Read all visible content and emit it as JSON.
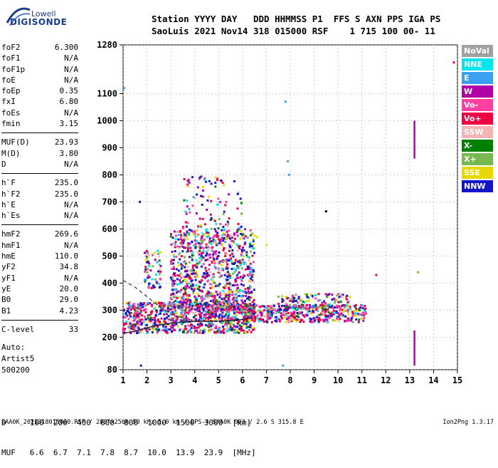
{
  "logo": {
    "line1": "Lowell",
    "line2": "DIGISONDE"
  },
  "header": {
    "line1": "Station YYYY DAY   DDD HHMMSS P1  FFS S AXN PPS IGA PS",
    "line2": "SaoLuis 2021 Nov14 318 015000 RSF    1 715 100 00- 11"
  },
  "params": [
    [
      {
        "k": "foF2",
        "v": "6.300"
      },
      {
        "k": "foF1",
        "v": "N/A"
      },
      {
        "k": "foF1p",
        "v": "N/A"
      },
      {
        "k": "foE",
        "v": "N/A"
      },
      {
        "k": "foEp",
        "v": "0.35"
      },
      {
        "k": "fxI",
        "v": "6.80"
      },
      {
        "k": "foEs",
        "v": "N/A"
      },
      {
        "k": "fmin",
        "v": "3.15"
      }
    ],
    [
      {
        "k": "MUF(D)",
        "v": "23.93"
      },
      {
        "k": "M(D)",
        "v": "3.80"
      },
      {
        "k": "D",
        "v": "N/A"
      }
    ],
    [
      {
        "k": "h`F",
        "v": "235.0"
      },
      {
        "k": "h`F2",
        "v": "235.0"
      },
      {
        "k": "h`E",
        "v": "N/A"
      },
      {
        "k": "h`Es",
        "v": "N/A"
      }
    ],
    [
      {
        "k": "hmF2",
        "v": "269.6"
      },
      {
        "k": "hmF1",
        "v": "N/A"
      },
      {
        "k": "hmE",
        "v": "110.0"
      },
      {
        "k": "yF2",
        "v": "34.8"
      },
      {
        "k": "yF1",
        "v": "N/A"
      },
      {
        "k": "yE",
        "v": "20.0"
      },
      {
        "k": "B0",
        "v": "29.0"
      },
      {
        "k": "B1",
        "v": "4.23"
      }
    ],
    [
      {
        "k": "C-level",
        "v": "33"
      }
    ]
  ],
  "auto": {
    "line1": "Auto:",
    "line2": "Artist5",
    "line3": "500200"
  },
  "legend": [
    {
      "label": "NoVal",
      "color": "#a0a0a0"
    },
    {
      "label": "NNE",
      "color": "#00e5ee"
    },
    {
      "label": "E",
      "color": "#3ca0f0"
    },
    {
      "label": "W",
      "color": "#b000a8"
    },
    {
      "label": "Vo-",
      "color": "#ff40a0"
    },
    {
      "label": "Vo+",
      "color": "#f00040"
    },
    {
      "label": "SSW",
      "color": "#f4b4b4"
    },
    {
      "label": "X-",
      "color": "#008000"
    },
    {
      "label": "X+",
      "color": "#78b850"
    },
    {
      "label": "SSE",
      "color": "#e6d800"
    },
    {
      "label": "NNW",
      "color": "#1414c8"
    }
  ],
  "chart_data": {
    "type": "scatter",
    "xlabel": "",
    "ylabel": "",
    "xlim": [
      1,
      15
    ],
    "ylim": [
      80,
      1280
    ],
    "x_ticks": [
      1,
      2,
      3,
      4,
      5,
      6,
      7,
      8,
      9,
      10,
      11,
      12,
      13,
      14,
      15
    ],
    "y_ticks": [
      80,
      200,
      300,
      400,
      500,
      600,
      700,
      800,
      900,
      1000,
      1100,
      1280
    ],
    "clusters": [
      {
        "name": "F-trace",
        "x": [
          1.0,
          6.5
        ],
        "y": [
          215,
          330
        ],
        "count": 900
      },
      {
        "name": "F-spread",
        "x": [
          3.0,
          6.5
        ],
        "y": [
          300,
          600
        ],
        "count": 900
      },
      {
        "name": "upper-spread",
        "x": [
          3.5,
          6.0
        ],
        "y": [
          500,
          800
        ],
        "count": 160
      },
      {
        "name": "low-freq-upper",
        "x": [
          1.9,
          2.6
        ],
        "y": [
          380,
          520
        ],
        "count": 70
      },
      {
        "name": "oblique-tail",
        "x": [
          6.0,
          11.2
        ],
        "y": [
          255,
          320
        ],
        "count": 450
      },
      {
        "name": "E-tail",
        "x": [
          7.5,
          10.5
        ],
        "y": [
          300,
          360
        ],
        "count": 120
      }
    ],
    "dashed_curve": {
      "x": [
        1.0,
        1.5,
        2.0,
        2.5,
        3.0,
        3.5,
        4.0,
        4.5,
        5.0,
        5.5,
        6.0,
        6.3
      ],
      "y": [
        410,
        385,
        350,
        315,
        285,
        270,
        262,
        258,
        258,
        260,
        266,
        276
      ]
    },
    "solid_curve": {
      "x": [
        1.0,
        1.5,
        2.0,
        2.5,
        3.0,
        3.5,
        4.0,
        4.5,
        5.0,
        5.5,
        6.0,
        6.3
      ],
      "y": [
        215,
        222,
        235,
        245,
        252,
        256,
        258,
        259,
        260,
        262,
        265,
        272
      ]
    },
    "vertical_traces": [
      {
        "x": 13.2,
        "y": [
          860,
          1000
        ],
        "color": "#b000a8"
      },
      {
        "x": 13.2,
        "y": [
          95,
          225
        ],
        "color": "#b000a8"
      }
    ],
    "isolated_points": [
      {
        "x": 7.8,
        "y": 1070,
        "color": "#3ca0f0"
      },
      {
        "x": 7.9,
        "y": 850,
        "color": "#3ca0f0"
      },
      {
        "x": 7.95,
        "y": 800,
        "color": "#3ca0f0"
      },
      {
        "x": 9.5,
        "y": 665,
        "color": "#000000"
      },
      {
        "x": 11.6,
        "y": 430,
        "color": "#f00040"
      },
      {
        "x": 13.35,
        "y": 440,
        "color": "#78b850"
      },
      {
        "x": 14.85,
        "y": 1215,
        "color": "#f00040"
      },
      {
        "x": 7.7,
        "y": 95,
        "color": "#3ca0f0"
      },
      {
        "x": 1.05,
        "y": 1120,
        "color": "#3ca0f0"
      },
      {
        "x": 1.7,
        "y": 700,
        "color": "#1414c8"
      },
      {
        "x": 1.75,
        "y": 95,
        "color": "#1414c8"
      },
      {
        "x": 7.0,
        "y": 540,
        "color": "#e6d800"
      },
      {
        "x": 6.6,
        "y": 570,
        "color": "#e6d800"
      }
    ]
  },
  "dtable": {
    "line1": "D     100  200  400  600  800  1000  1500  3000  [km]",
    "line2": "MUF   6.6  6.7  7.1  7.8  8.7  10.0  13.9  23.9  [MHz]"
  },
  "footer": {
    "left": "SAA0K_2021318015000.RSF / 280fx256h 50 kHz 5.0 km / DPS-4 SAA0K 903 / 2.6 S 315.8 E",
    "right": "Ion2Png 1.3.17"
  }
}
